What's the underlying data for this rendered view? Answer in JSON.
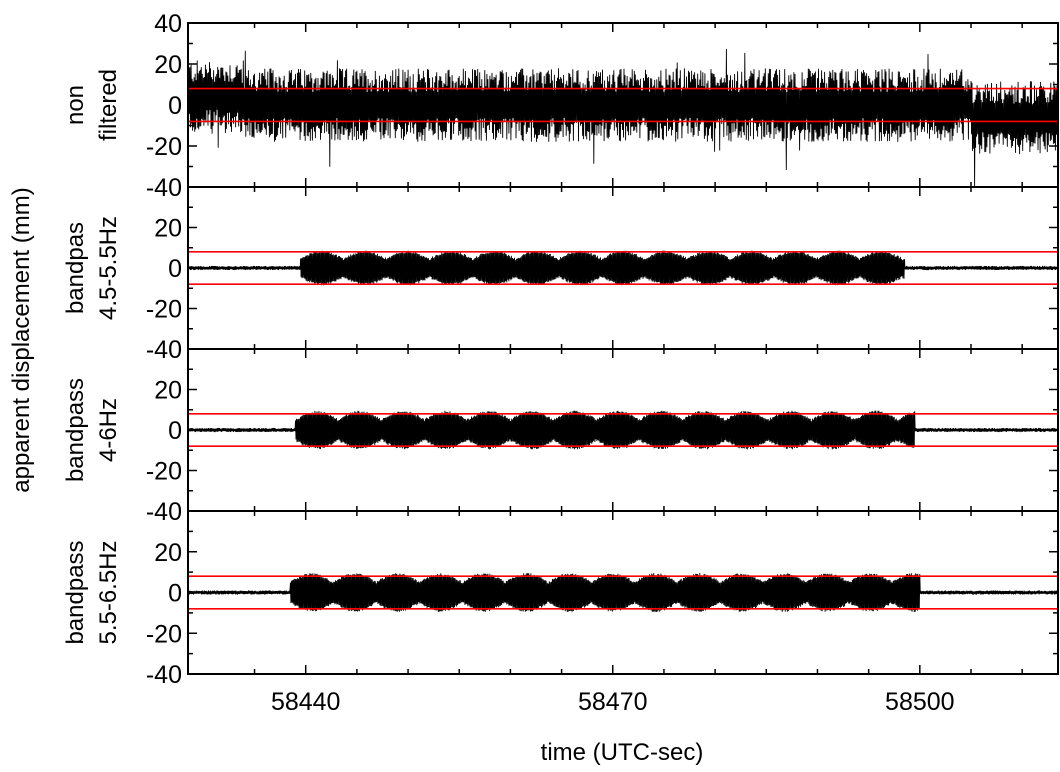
{
  "chart_data": {
    "type": "line",
    "xlabel": "time (UTC-sec)",
    "ylabel": "apparent displacement (mm)",
    "xlim": [
      58428.5,
      58513.5
    ],
    "x_ticks": [
      58440,
      58470,
      58500
    ],
    "x_tick_labels": [
      "58440",
      "58470",
      "58500"
    ],
    "ylim": [
      -40,
      40
    ],
    "y_ticks": [
      -40,
      -20,
      0,
      20,
      40
    ],
    "y_tick_labels": [
      "-40",
      "-20",
      "0",
      "20",
      "40"
    ],
    "threshold_lines": [
      8,
      -8
    ],
    "grid": false,
    "colors": {
      "signal": "#000000",
      "threshold": "#ff0000",
      "frame": "#000000"
    },
    "panels": [
      {
        "label_lines": [
          "non",
          "filtered"
        ],
        "kind": "raw",
        "baseline_amplitude": 18,
        "signal_start": 58428.5,
        "signal_end": 58513.5
      },
      {
        "label_lines": [
          "bandpas",
          "4.5-5.5Hz"
        ],
        "kind": "bandpass",
        "baseline_amplitude": 1,
        "burst_amplitude": 8,
        "signal_start": 58439.5,
        "signal_end": 58498.5
      },
      {
        "label_lines": [
          "bandpass",
          "4-6Hz"
        ],
        "kind": "bandpass",
        "baseline_amplitude": 1,
        "burst_amplitude": 9,
        "signal_start": 58439,
        "signal_end": 58499.5
      },
      {
        "label_lines": [
          "bandpass",
          "5.5-6.5Hz"
        ],
        "kind": "bandpass",
        "baseline_amplitude": 1,
        "burst_amplitude": 9,
        "signal_start": 58438.5,
        "signal_end": 58500
      }
    ]
  }
}
